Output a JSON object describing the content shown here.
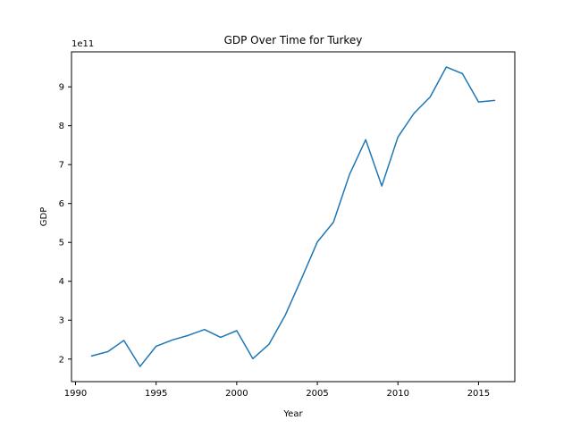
{
  "chart_data": {
    "type": "line",
    "title": "GDP Over Time for Turkey",
    "xlabel": "Year",
    "ylabel": "GDP",
    "y_offset_label": "1e11",
    "xlim": [
      1989.75,
      2017.25
    ],
    "ylim": [
      1.42,
      9.9
    ],
    "x_ticks": [
      1990,
      1995,
      2000,
      2005,
      2010,
      2015
    ],
    "y_ticks": [
      2,
      3,
      4,
      5,
      6,
      7,
      8,
      9
    ],
    "grid": false,
    "line_color": "#1f77b4",
    "series": [
      {
        "x": [
          1991,
          1992,
          1993,
          1994,
          1995,
          1996,
          1997,
          1998,
          1999,
          2000,
          2001,
          2002,
          2003,
          2004,
          2005,
          2006,
          2007,
          2008,
          2009,
          2010,
          2011,
          2012,
          2013,
          2014,
          2015,
          2016
        ],
        "y": [
          2.08,
          2.19,
          2.48,
          1.81,
          2.33,
          2.49,
          2.61,
          2.76,
          2.56,
          2.73,
          2.01,
          2.38,
          3.12,
          4.05,
          5.01,
          5.52,
          6.75,
          7.64,
          6.45,
          7.71,
          8.32,
          8.74,
          9.51,
          9.34,
          8.61,
          8.65
        ]
      }
    ]
  }
}
